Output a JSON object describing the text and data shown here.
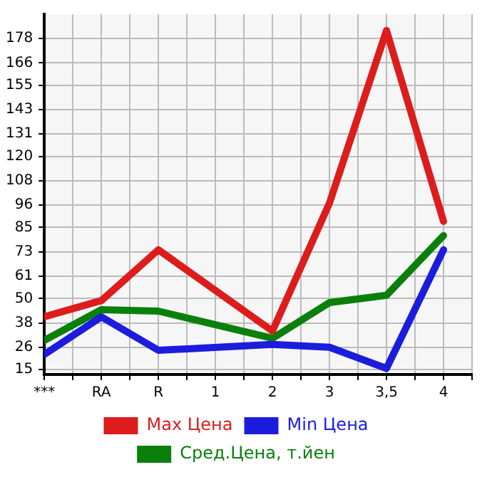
{
  "chart_data": {
    "type": "line",
    "categories": [
      "***",
      "RA",
      "R",
      "1",
      "2",
      "3",
      "3,5",
      "4"
    ],
    "series": [
      {
        "name": "Max Цена",
        "color": "#dd1c1c",
        "values": [
          41,
          49,
          74,
          null,
          34,
          97,
          182,
          88
        ]
      },
      {
        "name": "Min Цена",
        "color": "#1c1cdd",
        "values": [
          22.5,
          41,
          24.5,
          null,
          27.4,
          26,
          15.6,
          74
        ]
      },
      {
        "name": "Сред.Цена, т.йен",
        "color": "#0a800a",
        "values": [
          29.4,
          44.5,
          43.8,
          null,
          30.4,
          48,
          51.6,
          81
        ]
      }
    ],
    "ylim": [
      12.6,
      190
    ],
    "yticks": [
      15,
      26,
      38,
      50,
      61,
      73,
      85,
      96,
      108,
      120,
      131,
      143,
      155,
      166,
      178
    ],
    "grid": true,
    "legend": "bottom",
    "marker": "none",
    "line_style": "solid"
  }
}
